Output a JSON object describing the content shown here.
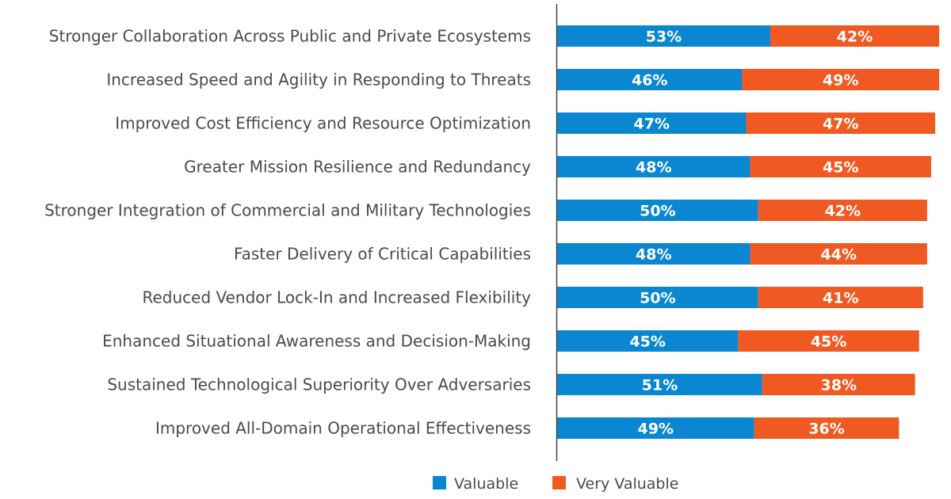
{
  "chart_data": {
    "type": "bar",
    "orientation": "horizontal",
    "stacked": true,
    "title": "",
    "xlabel": "",
    "ylabel": "",
    "xlim": [
      0,
      100
    ],
    "grid": false,
    "legend_position": "bottom-center",
    "value_suffix": "%",
    "categories": [
      "Stronger Collaboration Across Public and Private Ecosystems",
      "Increased Speed and Agility in Responding to Threats",
      "Improved Cost Efficiency and Resource Optimization",
      "Greater Mission Resilience and Redundancy",
      "Stronger Integration of Commercial and Military Technologies",
      "Faster Delivery of Critical Capabilities",
      "Reduced Vendor Lock-In and Increased Flexibility",
      "Enhanced Situational Awareness and Decision-Making",
      "Sustained Technological Superiority Over Adversaries",
      "Improved All-Domain Operational Effectiveness"
    ],
    "series": [
      {
        "name": "Valuable",
        "color": "#0a87d0",
        "values": [
          53,
          46,
          47,
          48,
          50,
          48,
          50,
          45,
          51,
          49
        ]
      },
      {
        "name": "Very Valuable",
        "color": "#f05a22",
        "values": [
          42,
          49,
          47,
          45,
          42,
          44,
          41,
          45,
          38,
          36
        ]
      }
    ]
  }
}
